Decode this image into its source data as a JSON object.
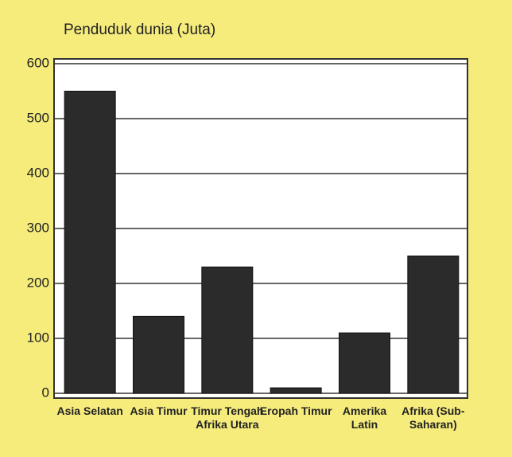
{
  "chart_data": {
    "type": "bar",
    "title": "Penduduk dunia (Juta)",
    "categories": [
      "Asia Selatan",
      "Asia Timur",
      "Timur Tengah Afrika Utara",
      "Eropah Timur",
      "Amerika Latin",
      "Afrika (Sub-Saharan)"
    ],
    "values": [
      550,
      140,
      230,
      10,
      110,
      250
    ],
    "color": "#2b2b2b",
    "ylim": [
      0,
      600
    ],
    "yticks": [
      0,
      100,
      200,
      300,
      400,
      500,
      600
    ],
    "grid": true
  }
}
